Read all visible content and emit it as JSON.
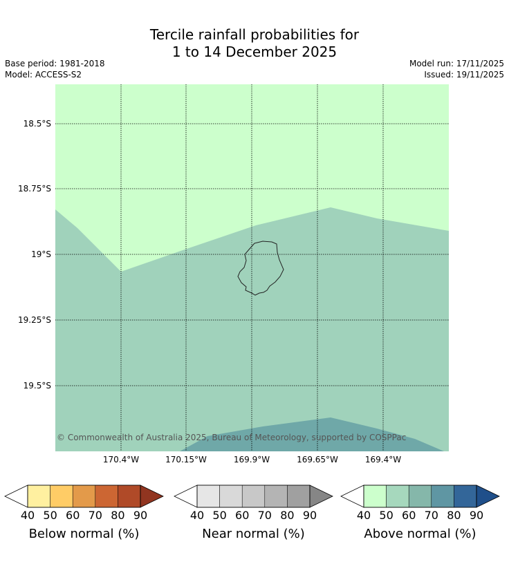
{
  "title": {
    "line1": "Tercile rainfall probabilities for",
    "line2": "1 to 14 December 2025"
  },
  "meta": {
    "base_period": "Base period: 1981-2018",
    "model": "Model: ACCESS-S2",
    "model_run": "Model run: 17/11/2025",
    "issued": "Issued: 19/11/2025"
  },
  "map": {
    "lat_labels": [
      "18.5°S",
      "18.75°S",
      "19°S",
      "19.25°S",
      "19.5°S"
    ],
    "lon_labels": [
      "170.4°W",
      "170.15°W",
      "169.9°W",
      "169.65°W",
      "169.4°W"
    ],
    "copyright": "© Commonwealth of Australia 2025, Bureau of Meteorology, supported by COSPPac",
    "colors": {
      "above_40_50": "#ccffcc",
      "above_50_60": "#a0d2bb",
      "above_60_70": "#6fa8a8"
    }
  },
  "legends": [
    {
      "name": "below",
      "title": "Below normal (%)",
      "ticks": [
        "40",
        "50",
        "60",
        "70",
        "80",
        "90"
      ],
      "colors": [
        "#fff0a0",
        "#ffcc66",
        "#e39a4a",
        "#cc6633",
        "#b04a28",
        "#913520"
      ]
    },
    {
      "name": "near",
      "title": "Near normal (%)",
      "ticks": [
        "40",
        "50",
        "60",
        "70",
        "80",
        "90"
      ],
      "colors": [
        "#e6e6e6",
        "#d9d9d9",
        "#c8c8c8",
        "#b4b4b4",
        "#a0a0a0",
        "#868686"
      ]
    },
    {
      "name": "above",
      "title": "Above normal (%)",
      "ticks": [
        "40",
        "50",
        "60",
        "70",
        "80",
        "90"
      ],
      "colors": [
        "#ccffcc",
        "#a6d8bd",
        "#85b7aa",
        "#5f96a3",
        "#336699",
        "#1f4f8a"
      ]
    }
  ]
}
